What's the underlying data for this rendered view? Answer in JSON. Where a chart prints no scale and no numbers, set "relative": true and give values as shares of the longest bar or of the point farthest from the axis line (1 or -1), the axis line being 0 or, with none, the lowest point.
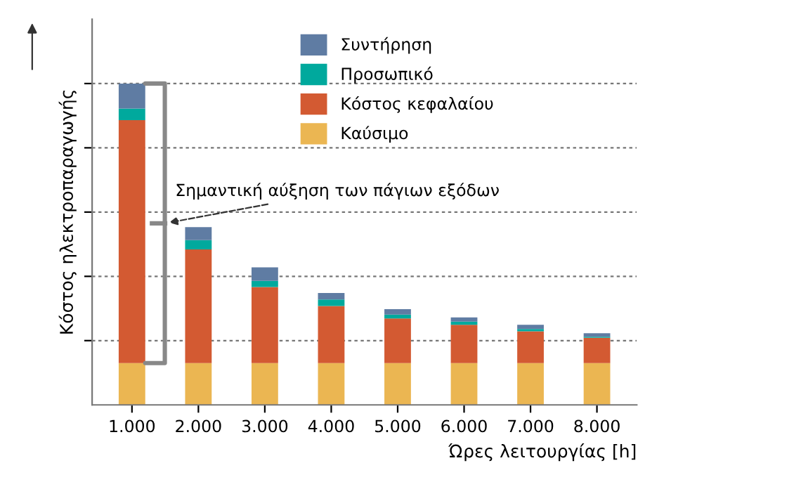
{
  "chart_data": {
    "type": "bar",
    "stacked": true,
    "relative": true,
    "xlabel": "Ώρες λειτουργίας [h]",
    "ylabel": "Κόστος ηλεκτροπαραγωγής",
    "categories": [
      "1.000",
      "2.000",
      "3.000",
      "4.000",
      "5.000",
      "6.000",
      "7.000",
      "8.000"
    ],
    "series": [
      {
        "name": "Καύσιμο",
        "color": "#ebb652",
        "values": [
          0.13,
          0.13,
          0.13,
          0.13,
          0.13,
          0.13,
          0.13,
          0.13
        ]
      },
      {
        "name": "Κόστος κεφαλαίου",
        "color": "#d35a32",
        "values": [
          0.756,
          0.354,
          0.237,
          0.178,
          0.139,
          0.119,
          0.099,
          0.079
        ]
      },
      {
        "name": "Προσωπικό",
        "color": "#00a99d",
        "values": [
          0.036,
          0.029,
          0.019,
          0.02,
          0.012,
          0.01,
          0.007,
          0.003
        ]
      },
      {
        "name": "Συντήρηση",
        "color": "#5f7ca3",
        "values": [
          0.078,
          0.04,
          0.042,
          0.02,
          0.017,
          0.013,
          0.013,
          0.011
        ]
      }
    ],
    "annotations": [
      "Σημαντική αύξηση των πάγιων εξόδων"
    ],
    "grid": "y",
    "legend": "top"
  }
}
